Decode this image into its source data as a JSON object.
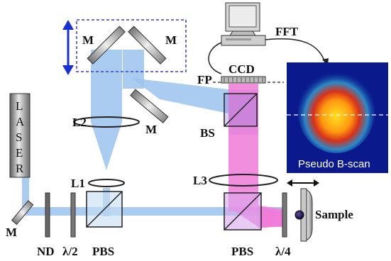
{
  "labels": {
    "mirror_top_left": "M",
    "mirror_top_right": "M",
    "mirror_mid": "M",
    "mirror_bottom_left": "M",
    "fft": "FFT",
    "ccd": "CCD",
    "fp": "FP",
    "l2": "L2",
    "l1": "L1",
    "l3": "L3",
    "bs": "BS",
    "laser": [
      "L",
      "A",
      "S",
      "E",
      "R"
    ],
    "nd": "ND",
    "half_wave": "λ/2",
    "pbs_left": "PBS",
    "pbs_right": "PBS",
    "quarter_wave": "λ/4",
    "sample": "Sample",
    "pseudo_bscan": "Pseudo B-scan"
  },
  "colors": {
    "reference_beam": "#9cc3ee",
    "signal_beam": "#f07ad8",
    "translation_arrow": "#1a2fd6",
    "dashed_box": "#3a3ad0",
    "image_background": "#0a1a8c"
  },
  "icons": {
    "computer": "computer-monitor-icon",
    "translation": "double-arrow-icon"
  }
}
